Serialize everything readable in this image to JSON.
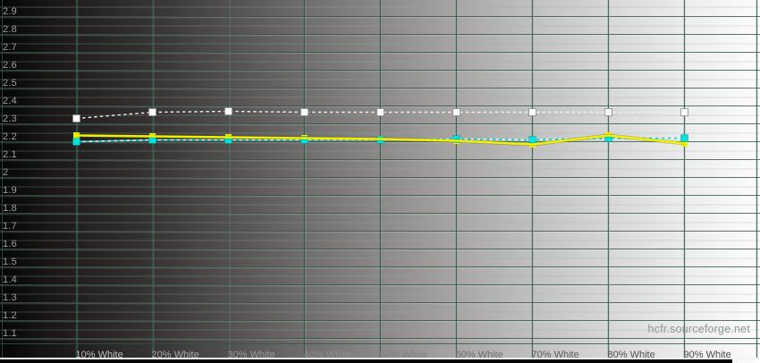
{
  "watermark": "hcfr.sourceforge.net",
  "colors": {
    "grid_major": "#2f564a",
    "grid_minor": "#96ada2",
    "grid_highlight": "#ffffff",
    "y_label": "#9aa09c",
    "watermark": "#8e9a96",
    "series_reference": "#f0f0f0",
    "series_yellow": "#f0f000",
    "series_cyan": "#00ddd6",
    "marker_reference_fill": "#fbfbfb",
    "marker_cyan_fill": "#00e2dc",
    "marker_yellow_fill": "#f2f200",
    "bottom_bar": "#060606"
  },
  "chart_data": {
    "type": "line",
    "title": "",
    "xlabel": "",
    "ylabel": "",
    "x_values": [
      10,
      20,
      30,
      40,
      50,
      60,
      70,
      80,
      90
    ],
    "x_tick_labels": [
      {
        "label": "10% White",
        "color": "#bcbebc"
      },
      {
        "label": "20% White",
        "color": "#a9aba9"
      },
      {
        "label": "30% White",
        "color": "#989a98"
      },
      {
        "label": "40% White",
        "color": "#8d8f8d"
      },
      {
        "label": "50% White",
        "color": "#808280"
      },
      {
        "label": "60% White",
        "color": "#6e706e"
      },
      {
        "label": "70% White",
        "color": "#5c5e5c"
      },
      {
        "label": "80% White",
        "color": "#525452"
      },
      {
        "label": "90% White",
        "color": "#494b49"
      }
    ],
    "y_tick_labels": [
      "2.9",
      "2.8",
      "2.7",
      "2.6",
      "2.5",
      "2.4",
      "2.3",
      "2.2",
      "2.1",
      "2",
      "1.9",
      "1.8",
      "1.7",
      "1.6",
      "1.5",
      "1.4",
      "1.3",
      "1.2",
      "1.1"
    ],
    "ylim": [
      1.07,
      2.99
    ],
    "grid": true,
    "legend": "none",
    "series": [
      {
        "name": "white-dashed-reference",
        "line_style": "dashed",
        "marker": "square",
        "values": [
          2.33,
          2.365,
          2.37,
          2.365,
          2.365,
          2.365,
          2.365,
          2.365,
          2.365
        ]
      },
      {
        "name": "yellow-solid-gamma",
        "line_style": "solid",
        "marker": "square",
        "values": [
          2.235,
          2.23,
          2.225,
          2.22,
          2.215,
          2.205,
          2.185,
          2.235,
          2.19
        ]
      },
      {
        "name": "cyan-dashed-gamma",
        "line_style": "dashed-two-tone",
        "marker": "square",
        "values": [
          2.2,
          2.21,
          2.21,
          2.21,
          2.21,
          2.215,
          2.21,
          2.22,
          2.22
        ]
      }
    ]
  }
}
